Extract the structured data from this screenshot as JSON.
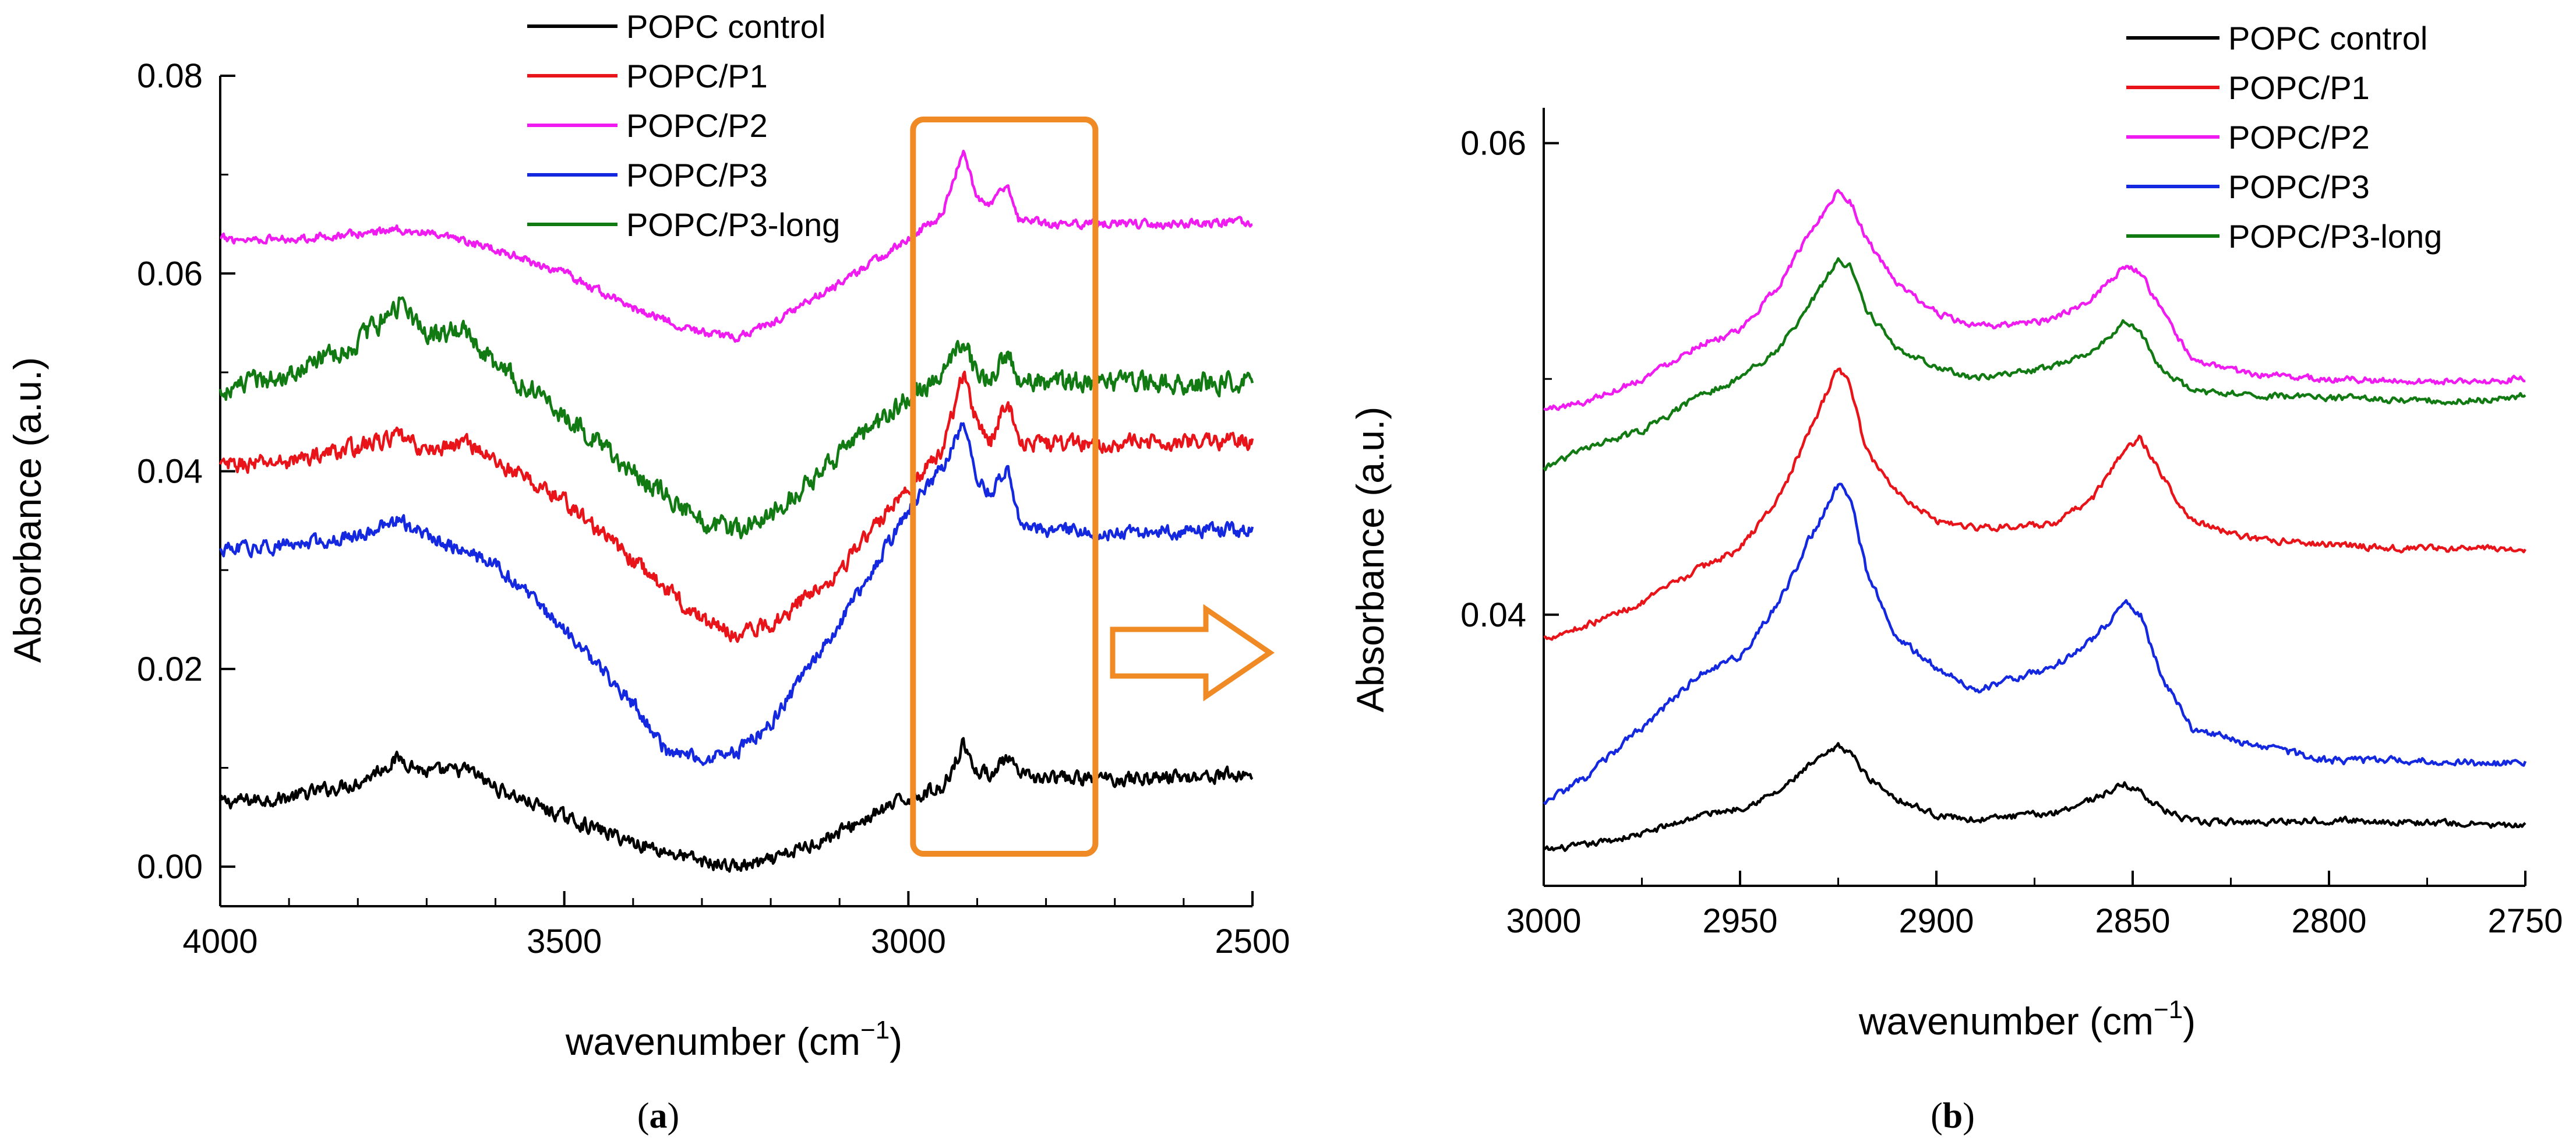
{
  "chart_data": [
    {
      "type": "line",
      "panel": "a",
      "panel_label": "a",
      "xlabel": "wavenumber (cm",
      "xlabel_sup": "−1",
      "xlabel_close": ")",
      "ylabel": "Absorbance (a.u.)",
      "xlim": [
        4000,
        2500
      ],
      "ylim": [
        -0.004,
        0.08
      ],
      "x_ticks": [
        "4000",
        "3500",
        "3000",
        "2500"
      ],
      "y_ticks": [
        "0.00",
        "0.02",
        "0.04",
        "0.06",
        "0.08"
      ],
      "legend_position": "top",
      "highlight_box_x_range": [
        3000,
        2735
      ],
      "highlight_color": "#F08A24",
      "series": [
        {
          "name": "POPC control",
          "color": "#000000",
          "noise": 0.0006,
          "x": [
            4000,
            3900,
            3800,
            3740,
            3700,
            3640,
            3600,
            3500,
            3400,
            3300,
            3250,
            3200,
            3100,
            3000,
            2950,
            2920,
            2900,
            2880,
            2855,
            2840,
            2800,
            2700,
            2600,
            2500
          ],
          "y": [
            0.0065,
            0.007,
            0.0085,
            0.011,
            0.0095,
            0.0098,
            0.008,
            0.005,
            0.0025,
            0.0005,
            0.0,
            0.0005,
            0.0035,
            0.007,
            0.008,
            0.0125,
            0.0095,
            0.0095,
            0.011,
            0.0092,
            0.0089,
            0.0089,
            0.0091,
            0.0093
          ]
        },
        {
          "name": "POPC/P1",
          "color": "#E8141A",
          "noise": 0.0007,
          "x": [
            4000,
            3900,
            3800,
            3740,
            3700,
            3640,
            3600,
            3500,
            3400,
            3300,
            3250,
            3200,
            3100,
            3000,
            2950,
            2920,
            2900,
            2880,
            2855,
            2840,
            2800,
            2700,
            2600,
            2500
          ],
          "y": [
            0.0405,
            0.041,
            0.0425,
            0.0435,
            0.042,
            0.043,
            0.041,
            0.037,
            0.031,
            0.025,
            0.0235,
            0.0245,
            0.03,
            0.0385,
            0.042,
            0.05,
            0.045,
            0.043,
            0.0475,
            0.043,
            0.0428,
            0.0428,
            0.043,
            0.043
          ]
        },
        {
          "name": "POPC/P2",
          "color": "#F01BF0",
          "noise": 0.00035,
          "x": [
            4000,
            3900,
            3800,
            3740,
            3700,
            3600,
            3500,
            3400,
            3300,
            3250,
            3200,
            3100,
            3000,
            2950,
            2920,
            2900,
            2880,
            2855,
            2840,
            2800,
            2700,
            2600,
            2500
          ],
          "y": [
            0.0635,
            0.0635,
            0.064,
            0.0645,
            0.064,
            0.0625,
            0.06,
            0.0565,
            0.054,
            0.0535,
            0.055,
            0.059,
            0.0635,
            0.066,
            0.0725,
            0.0675,
            0.067,
            0.069,
            0.0655,
            0.065,
            0.065,
            0.065,
            0.0652
          ]
        },
        {
          "name": "POPC/P3",
          "color": "#1428E0",
          "noise": 0.0006,
          "x": [
            4000,
            3900,
            3800,
            3740,
            3700,
            3600,
            3500,
            3400,
            3350,
            3300,
            3250,
            3200,
            3100,
            3000,
            2950,
            2920,
            2900,
            2880,
            2855,
            2840,
            2800,
            2700,
            2600,
            2500
          ],
          "y": [
            0.032,
            0.0325,
            0.0335,
            0.035,
            0.0335,
            0.0305,
            0.024,
            0.0165,
            0.0115,
            0.011,
            0.0115,
            0.0145,
            0.0245,
            0.036,
            0.0405,
            0.045,
            0.0395,
            0.0375,
            0.0405,
            0.035,
            0.034,
            0.0338,
            0.034,
            0.034
          ]
        },
        {
          "name": "POPC/P3-long",
          "color": "#127A12",
          "noise": 0.0009,
          "x": [
            4000,
            3900,
            3800,
            3740,
            3700,
            3640,
            3600,
            3500,
            3400,
            3300,
            3250,
            3200,
            3100,
            3000,
            2950,
            2920,
            2900,
            2880,
            2855,
            2840,
            2800,
            2700,
            2600,
            2500
          ],
          "y": [
            0.048,
            0.05,
            0.053,
            0.057,
            0.054,
            0.054,
            0.051,
            0.0455,
            0.04,
            0.035,
            0.034,
            0.0355,
            0.0415,
            0.0475,
            0.0495,
            0.0535,
            0.0495,
            0.0495,
            0.052,
            0.0495,
            0.049,
            0.049,
            0.049,
            0.049
          ]
        }
      ]
    },
    {
      "type": "line",
      "panel": "b",
      "panel_label": "b",
      "xlabel": "wavenumber (cm",
      "xlabel_sup": "−1",
      "xlabel_close": ")",
      "ylabel": "Absorbance (a.u.)",
      "xlim": [
        3000,
        2750
      ],
      "ylim": [
        0.0285,
        0.0615
      ],
      "x_ticks": [
        "3000",
        "2950",
        "2900",
        "2850",
        "2800",
        "2750"
      ],
      "y_ticks": [
        "0.04",
        "0.06"
      ],
      "legend_position": "top-right",
      "series": [
        {
          "name": "POPC control",
          "color": "#000000",
          "noise": 0.00012,
          "x": [
            3000,
            2990,
            2975,
            2960,
            2950,
            2940,
            2933,
            2925,
            2922,
            2918,
            2910,
            2900,
            2890,
            2870,
            2860,
            2852,
            2848,
            2843,
            2835,
            2820,
            2800,
            2780,
            2760,
            2750
          ],
          "y": [
            0.03,
            0.0302,
            0.0307,
            0.0315,
            0.0318,
            0.0325,
            0.0335,
            0.0344,
            0.0342,
            0.0332,
            0.0322,
            0.0315,
            0.0313,
            0.0316,
            0.0322,
            0.0328,
            0.0325,
            0.0318,
            0.0312,
            0.0312,
            0.0313,
            0.0312,
            0.0311,
            0.031
          ]
        },
        {
          "name": "POPC/P1",
          "color": "#E8141A",
          "noise": 0.00012,
          "x": [
            3000,
            2990,
            2975,
            2960,
            2950,
            2940,
            2933,
            2925,
            2922,
            2918,
            2910,
            2900,
            2890,
            2870,
            2860,
            2852,
            2848,
            2843,
            2835,
            2820,
            2800,
            2780,
            2760,
            2750
          ],
          "y": [
            0.039,
            0.0395,
            0.0405,
            0.042,
            0.0428,
            0.045,
            0.0475,
            0.0505,
            0.0498,
            0.047,
            0.0452,
            0.044,
            0.0437,
            0.0438,
            0.045,
            0.047,
            0.0475,
            0.046,
            0.044,
            0.0432,
            0.043,
            0.0428,
            0.0428,
            0.0428
          ]
        },
        {
          "name": "POPC/P2",
          "color": "#F01BF0",
          "noise": 0.00012,
          "x": [
            3000,
            2990,
            2975,
            2960,
            2950,
            2940,
            2933,
            2925,
            2922,
            2918,
            2910,
            2900,
            2890,
            2870,
            2860,
            2852,
            2848,
            2843,
            2835,
            2820,
            2800,
            2780,
            2760,
            2750
          ],
          "y": [
            0.0487,
            0.049,
            0.05,
            0.0515,
            0.052,
            0.054,
            0.056,
            0.058,
            0.0576,
            0.056,
            0.054,
            0.0528,
            0.0522,
            0.0525,
            0.0535,
            0.0548,
            0.0545,
            0.053,
            0.0508,
            0.0502,
            0.05,
            0.0499,
            0.0499,
            0.05
          ]
        },
        {
          "name": "POPC/P3",
          "color": "#1428E0",
          "noise": 0.00014,
          "x": [
            3000,
            2990,
            2975,
            2960,
            2950,
            2940,
            2933,
            2925,
            2922,
            2918,
            2910,
            2900,
            2890,
            2870,
            2860,
            2852,
            2848,
            2843,
            2835,
            2820,
            2800,
            2780,
            2760,
            2750
          ],
          "y": [
            0.032,
            0.033,
            0.0352,
            0.0375,
            0.0382,
            0.0405,
            0.043,
            0.0455,
            0.045,
            0.042,
            0.039,
            0.0378,
            0.0368,
            0.0378,
            0.039,
            0.0405,
            0.04,
            0.0375,
            0.0352,
            0.0345,
            0.0338,
            0.0338,
            0.0337,
            0.0337
          ]
        },
        {
          "name": "POPC/P3-long",
          "color": "#127A12",
          "noise": 0.00012,
          "x": [
            3000,
            2990,
            2975,
            2960,
            2950,
            2940,
            2933,
            2925,
            2922,
            2918,
            2910,
            2900,
            2890,
            2870,
            2860,
            2852,
            2848,
            2843,
            2835,
            2820,
            2800,
            2780,
            2760,
            2750
          ],
          "y": [
            0.0462,
            0.047,
            0.0478,
            0.0493,
            0.05,
            0.0513,
            0.053,
            0.055,
            0.0548,
            0.053,
            0.0513,
            0.0505,
            0.05,
            0.0505,
            0.0512,
            0.0525,
            0.052,
            0.0505,
            0.0495,
            0.0493,
            0.0492,
            0.0491,
            0.0491,
            0.0493
          ]
        }
      ]
    }
  ]
}
